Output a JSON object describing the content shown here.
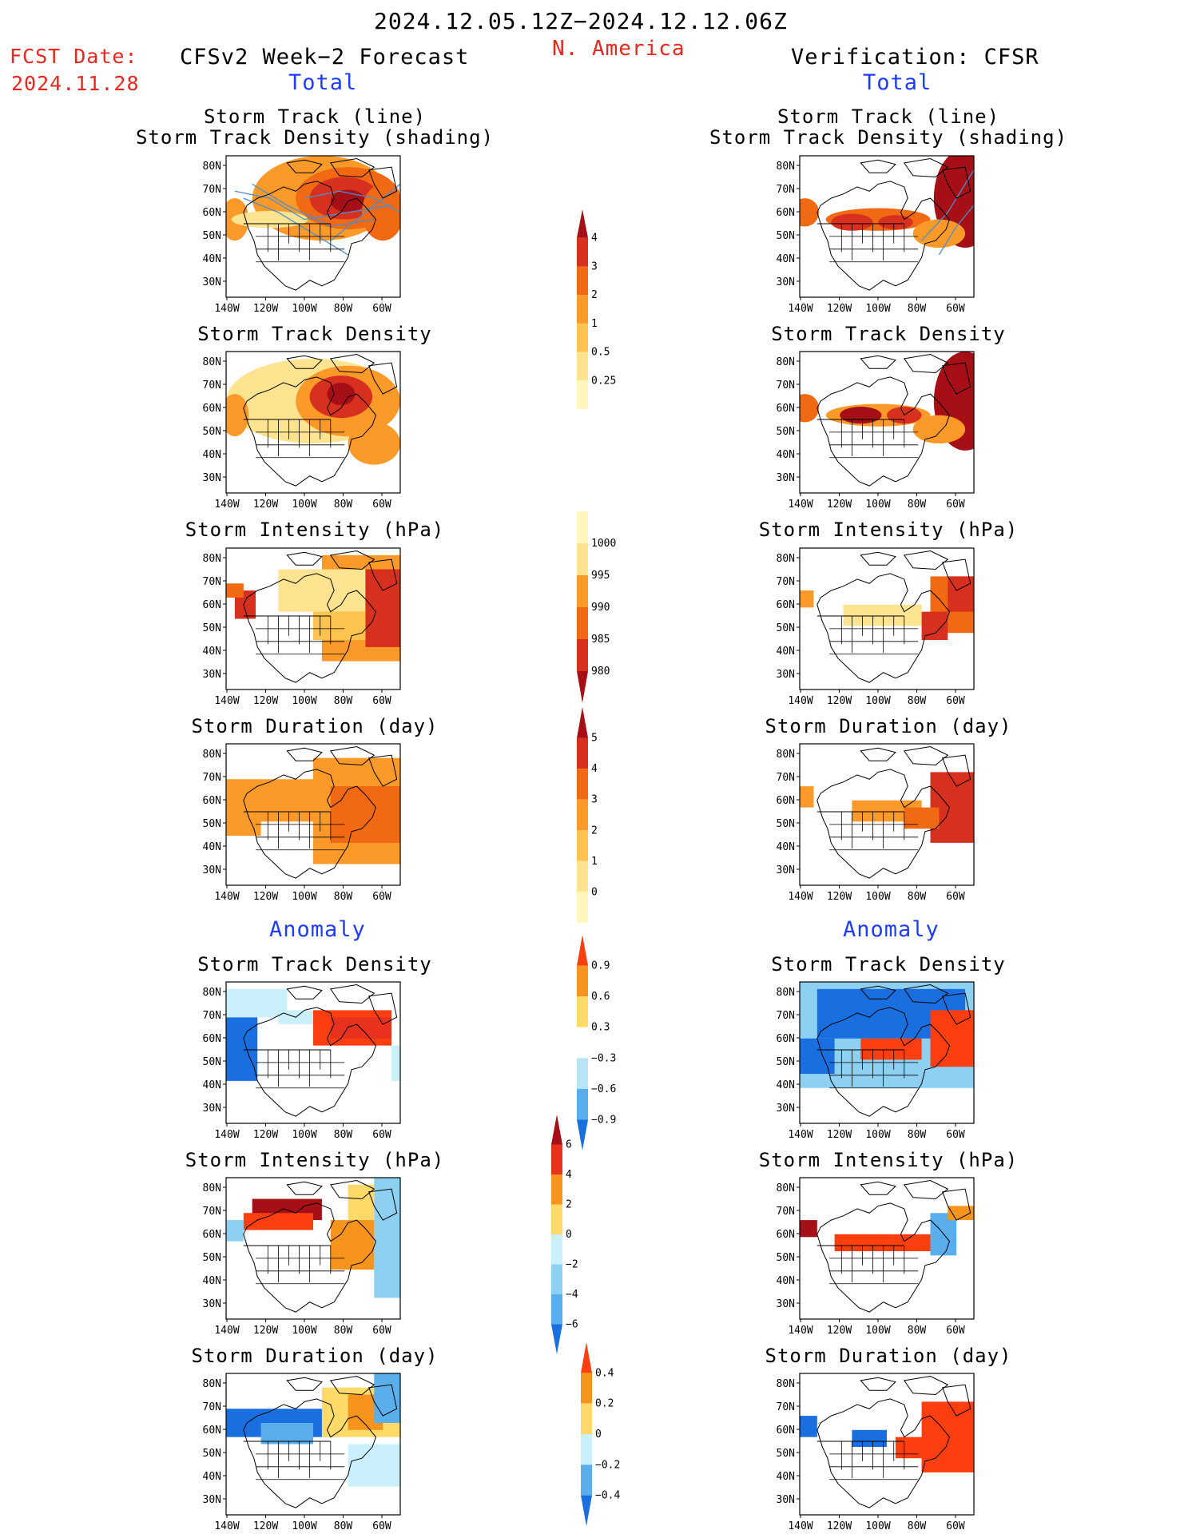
{
  "header": {
    "period": "2024.12.05.12Z−2024.12.12.06Z",
    "region": "N. America",
    "fcst_label": "FCST Date:",
    "fcst_date": "2024.11.28",
    "left_title": "CFSv2 Week−2 Forecast",
    "right_title": "Verification: CFSR",
    "left_total": "Total",
    "right_total": "Total",
    "left_anomaly": "Anomaly",
    "right_anomaly": "Anomaly"
  },
  "panel_titles": {
    "track_line": "Storm Track (line)",
    "track_density_shading": "Storm Track Density (shading)",
    "track_density": "Storm Track Density",
    "intensity": "Storm Intensity (hPa)",
    "duration": "Storm Duration (day)"
  },
  "lat_labels": [
    "80N",
    "70N",
    "60N",
    "50N",
    "40N",
    "30N"
  ],
  "lon_labels": [
    "140W",
    "120W",
    "100W",
    "80W",
    "60W"
  ],
  "colorbars": [
    {
      "name": "track-density-total",
      "labels": [
        "4",
        "3",
        "2",
        "1",
        "0.5",
        "0.25"
      ],
      "colors": [
        "#a50f15",
        "#d7301f",
        "#f16913",
        "#fb9a29",
        "#fec44f",
        "#fee391",
        "#fff7bc"
      ]
    },
    {
      "name": "intensity-total",
      "labels": [
        "1000",
        "995",
        "990",
        "985",
        "980"
      ],
      "colors": [
        "#fff7bc",
        "#fee391",
        "#fb9a29",
        "#f16913",
        "#d7301f",
        "#a50f15"
      ]
    },
    {
      "name": "duration-total",
      "labels": [
        "5",
        "4",
        "3",
        "2",
        "1",
        "0"
      ],
      "colors": [
        "#a50f15",
        "#d7301f",
        "#f16913",
        "#fb9a29",
        "#fec44f",
        "#fee391",
        "#fff7bc"
      ]
    },
    {
      "name": "track-density-anomaly",
      "labels": [
        "0.9",
        "0.6",
        "0.3",
        "−0.3",
        "−0.6",
        "−0.9"
      ],
      "colors": [
        "#fd3f10",
        "#f7941d",
        "#fedb68",
        "#ffffff",
        "#b6e6f5",
        "#5aaeeb",
        "#1a6fe0"
      ]
    },
    {
      "name": "intensity-anomaly",
      "labels": [
        "6",
        "4",
        "2",
        "0",
        "−2",
        "−4",
        "−6"
      ],
      "colors": [
        "#a50f15",
        "#e8321e",
        "#f7941d",
        "#fedb68",
        "#c9f0fb",
        "#8ed0f2",
        "#5aaeeb",
        "#1a6fe0"
      ]
    },
    {
      "name": "duration-anomaly",
      "labels": [
        "0.4",
        "0.2",
        "0",
        "−0.2",
        "−0.4"
      ],
      "colors": [
        "#fd3f10",
        "#f7941d",
        "#fedb68",
        "#c9f0fb",
        "#5aaeeb",
        "#1a6fe0"
      ]
    }
  ],
  "colors": {
    "title_red": "#e8281e",
    "title_blue": "#1e3cff",
    "storm_track_line": "#4a8fd0"
  }
}
